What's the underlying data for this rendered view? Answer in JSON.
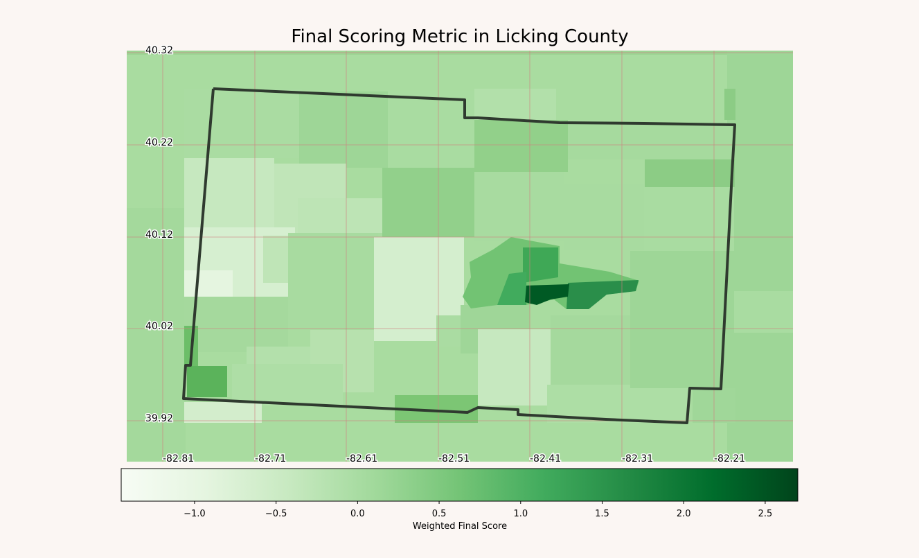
{
  "title": "Final Scoring Metric in Licking County",
  "map": {
    "lat_ticks": [
      "40.32",
      "40.22",
      "40.12",
      "40.02",
      "39.92"
    ],
    "lon_ticks": [
      "-82.81",
      "-82.71",
      "-82.61",
      "-82.51",
      "-82.41",
      "-82.31",
      "-82.21"
    ],
    "gridline_color": "#d08080",
    "county_outline_color": "#2f3a2f"
  },
  "colorbar": {
    "label": "Weighted Final Score",
    "min": -1.45,
    "max": 2.7,
    "ticks": [
      "−1.0",
      "−0.5",
      "0.0",
      "0.5",
      "1.0",
      "1.5",
      "2.0",
      "2.5"
    ],
    "tick_values": [
      -1.0,
      -0.5,
      0.0,
      0.5,
      1.0,
      1.5,
      2.0,
      2.5
    ],
    "colormap": "Greens",
    "colors": [
      "#f7fcf5",
      "#e5f5e0",
      "#c7e9c0",
      "#a1d99b",
      "#74c476",
      "#41ab5d",
      "#238b45",
      "#006d2c",
      "#00441b"
    ]
  }
}
